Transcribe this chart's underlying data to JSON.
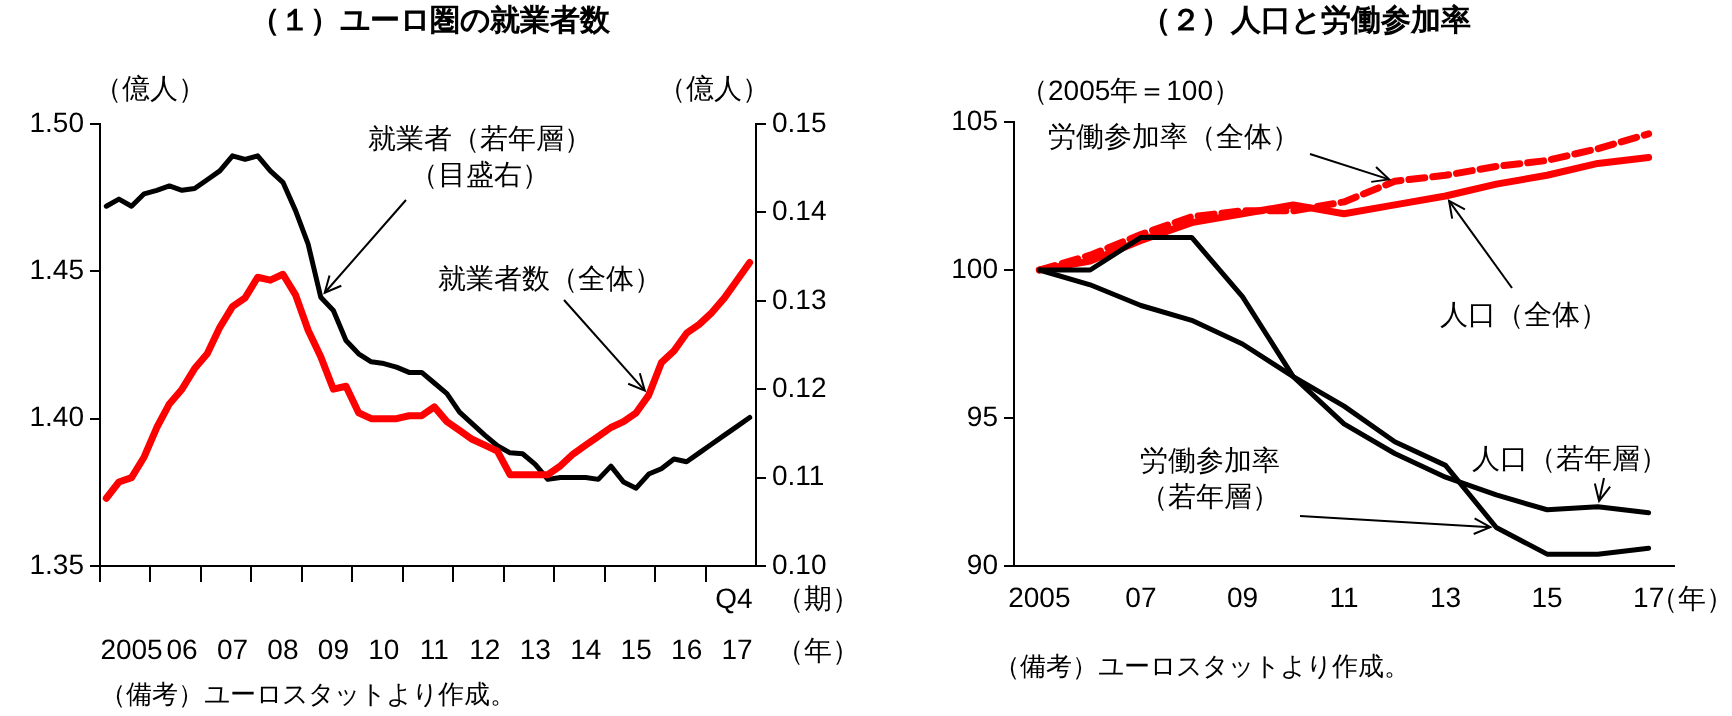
{
  "chart_data": [
    {
      "type": "line",
      "title": "（１）ユーロ圏の就業者数",
      "ylabel": "（億人）",
      "y2label": "（億人）",
      "xlabel": "（年）",
      "annotations": [
        "Q4",
        "（期）",
        "（備考）ユーロスタットより作成。"
      ],
      "categories": [
        null,
        null,
        "2005",
        null,
        null,
        null,
        "06",
        null,
        null,
        null,
        "07",
        null,
        null,
        null,
        "08",
        null,
        null,
        null,
        "09",
        null,
        null,
        null,
        "10",
        null,
        null,
        null,
        "11",
        null,
        null,
        null,
        "12",
        null,
        null,
        null,
        "13",
        null,
        null,
        null,
        "14",
        null,
        null,
        null,
        "15",
        null,
        null,
        null,
        "16",
        null,
        null,
        null,
        "17",
        null
      ],
      "ylim": [
        1.35,
        1.5
      ],
      "yticks": [
        {
          "value": 1.35,
          "label": "1.35"
        },
        {
          "value": 1.4,
          "label": "1.40"
        },
        {
          "value": 1.45,
          "label": "1.45"
        },
        {
          "value": 1.5,
          "label": "1.50"
        }
      ],
      "y2lim": [
        0.1,
        0.15
      ],
      "y2ticks": [
        {
          "value": 0.1,
          "label": "0.10"
        },
        {
          "value": 0.11,
          "label": "0.11"
        },
        {
          "value": 0.12,
          "label": "0.12"
        },
        {
          "value": 0.13,
          "label": "0.13"
        },
        {
          "value": 0.14,
          "label": "0.14"
        },
        {
          "value": 0.15,
          "label": "0.15"
        }
      ],
      "marker": "none",
      "series": [
        {
          "name": "就業者（若年層）（目盛右）",
          "color": "#000000",
          "axis": "y2",
          "values": [
            0.1407,
            0.1415,
            0.1407,
            0.1421,
            0.1425,
            0.143,
            0.1425,
            0.1427,
            0.1437,
            0.1447,
            0.1464,
            0.146,
            0.1464,
            0.1447,
            0.1434,
            0.1402,
            0.1364,
            0.1304,
            0.1289,
            0.1255,
            0.124,
            0.1231,
            0.1229,
            0.1225,
            0.1219,
            0.1219,
            0.1207,
            0.1195,
            0.1174,
            0.1161,
            0.1148,
            0.1136,
            0.1128,
            0.1127,
            0.1115,
            0.1098,
            0.11,
            0.11,
            0.11,
            0.1098,
            0.1113,
            0.1095,
            0.1088,
            0.1104,
            0.111,
            0.1121,
            0.1118,
            0.1128,
            0.1138,
            0.1148,
            0.1158,
            0.1168
          ]
        },
        {
          "name": "就業者数（全体）",
          "color": "#ff0000",
          "values": [
            1.373,
            1.3785,
            1.38,
            1.387,
            1.397,
            1.405,
            1.41,
            1.417,
            1.422,
            1.431,
            1.438,
            1.441,
            1.448,
            1.447,
            1.449,
            1.442,
            1.43,
            1.421,
            1.41,
            1.411,
            1.402,
            1.4,
            1.4,
            1.4,
            1.401,
            1.401,
            1.404,
            1.399,
            1.396,
            1.393,
            1.391,
            1.389,
            1.381,
            1.381,
            1.381,
            1.381,
            1.384,
            1.388,
            1.391,
            1.394,
            1.397,
            1.399,
            1.402,
            1.408,
            1.419,
            1.423,
            1.429,
            1.432,
            1.436,
            1.441,
            1.447,
            1.453
          ]
        }
      ]
    },
    {
      "type": "line",
      "title": "（２）人口と労働参加率",
      "ylabel": "（2005年＝100）",
      "xlabel": "（年）",
      "annotations": [
        "（備考）ユーロスタットより作成。"
      ],
      "categories": [
        "2005",
        null,
        "07",
        null,
        "09",
        null,
        "11",
        null,
        "13",
        null,
        "15",
        null,
        "17"
      ],
      "ylim": [
        90,
        105
      ],
      "yticks": [
        90,
        95,
        100,
        105
      ],
      "marker": "none",
      "series": [
        {
          "name": "労働参加率（全体）",
          "color": "#ff0000",
          "line_style": "dashed",
          "values": [
            100.0,
            100.5,
            101.2,
            101.8,
            102.0,
            102.0,
            102.3,
            103.0,
            103.2,
            103.5,
            103.7,
            104.1,
            104.6
          ]
        },
        {
          "name": "人口（全体）",
          "color": "#ff0000",
          "values": [
            100.0,
            100.3,
            101.0,
            101.6,
            101.9,
            102.2,
            101.9,
            102.2,
            102.5,
            102.9,
            103.2,
            103.6,
            103.8
          ]
        },
        {
          "name": "労働参加率（若年層）",
          "color": "#000000",
          "values": [
            100.0,
            100.0,
            101.1,
            101.1,
            99.1,
            96.4,
            95.4,
            94.2,
            93.4,
            91.3,
            90.4,
            90.4,
            90.6
          ]
        },
        {
          "name": "人口（若年層）",
          "color": "#000000",
          "values": [
            100.0,
            99.5,
            98.8,
            98.3,
            97.5,
            96.4,
            94.8,
            93.8,
            93.0,
            92.4,
            91.9,
            92.0,
            91.8
          ]
        }
      ]
    }
  ]
}
